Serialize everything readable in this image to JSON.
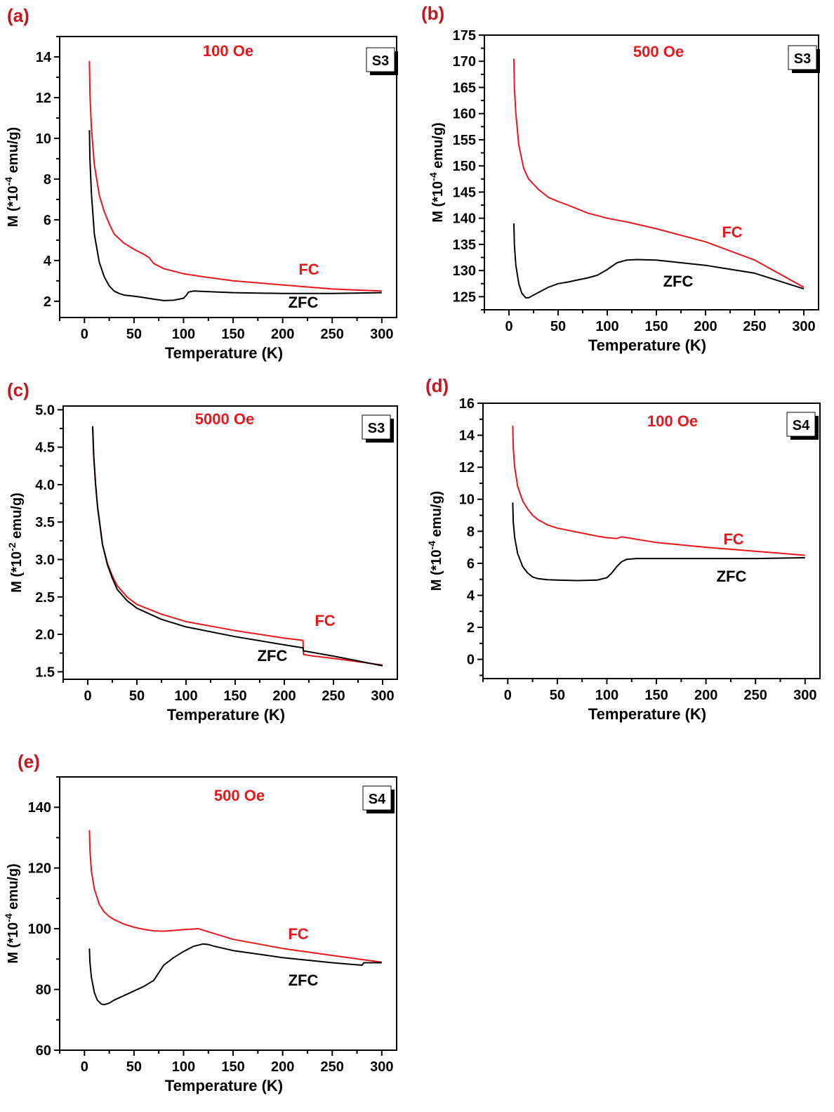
{
  "figure": {
    "colors": {
      "fc": "#e8171c",
      "zfc": "#000000",
      "letters": "#c4161c",
      "field": "#e8171c"
    }
  },
  "chart_data": [
    {
      "type": "line",
      "panel": "(a)",
      "field": "100 Oe",
      "sample": "S3",
      "xlabel": "Temperature (K)",
      "ylabel": {
        "base": "M (*10",
        "exp": "-4",
        "unit": " emu/g)"
      },
      "xlim": [
        -25,
        315
      ],
      "ylim": [
        1.2,
        15
      ],
      "xticks": [
        0,
        50,
        100,
        150,
        200,
        250,
        300
      ],
      "yticks": [
        2,
        4,
        6,
        8,
        10,
        12,
        14
      ],
      "grid": false,
      "series": [
        {
          "name": "FC",
          "color": "#e8171c",
          "x": [
            5,
            5.5,
            7,
            10,
            15,
            20,
            25,
            30,
            40,
            50,
            60,
            65,
            70,
            80,
            100,
            120,
            150,
            200,
            250,
            300
          ],
          "y": [
            13.8,
            12.2,
            10.5,
            8.7,
            7.2,
            6.4,
            5.8,
            5.3,
            4.85,
            4.55,
            4.3,
            4.15,
            3.85,
            3.6,
            3.35,
            3.2,
            3.0,
            2.8,
            2.6,
            2.5
          ]
        },
        {
          "name": "ZFC",
          "color": "#000000",
          "x": [
            5,
            5.5,
            7,
            10,
            15,
            20,
            25,
            30,
            35,
            40,
            50,
            60,
            70,
            80,
            90,
            100,
            103,
            105,
            110,
            120,
            150,
            200,
            250,
            300
          ],
          "y": [
            10.4,
            9.0,
            7.3,
            5.3,
            3.9,
            3.2,
            2.75,
            2.5,
            2.38,
            2.3,
            2.25,
            2.18,
            2.1,
            2.03,
            2.05,
            2.15,
            2.3,
            2.45,
            2.5,
            2.48,
            2.42,
            2.38,
            2.38,
            2.42
          ]
        }
      ]
    },
    {
      "type": "line",
      "panel": "(b)",
      "field": "500 Oe",
      "sample": "S3",
      "xlabel": "Temperature (K)",
      "ylabel": {
        "base": "M (*10",
        "exp": "-4",
        "unit": " emu/g)"
      },
      "xlim": [
        -25,
        315
      ],
      "ylim": [
        122.5,
        175
      ],
      "xticks": [
        0,
        50,
        100,
        150,
        200,
        250,
        300
      ],
      "yticks": [
        125,
        130,
        135,
        140,
        145,
        150,
        155,
        160,
        165,
        170,
        175
      ],
      "grid": false,
      "series": [
        {
          "name": "FC",
          "color": "#e8171c",
          "x": [
            5,
            5.5,
            7,
            10,
            15,
            20,
            25,
            30,
            40,
            50,
            60,
            80,
            100,
            120,
            150,
            200,
            250,
            300
          ],
          "y": [
            170.5,
            165,
            160,
            154,
            149.5,
            147.5,
            146.5,
            145.5,
            144,
            143.2,
            142.5,
            141,
            140,
            139.3,
            138,
            135.5,
            132,
            126.8
          ]
        },
        {
          "name": "ZFC",
          "color": "#000000",
          "x": [
            5,
            5.5,
            7,
            10,
            13,
            17,
            20,
            25,
            30,
            40,
            50,
            60,
            70,
            80,
            90,
            100,
            110,
            120,
            130,
            150,
            200,
            250,
            300
          ],
          "y": [
            139,
            135,
            131,
            127.5,
            125.7,
            124.8,
            124.8,
            125.3,
            125.8,
            126.8,
            127.5,
            127.8,
            128.2,
            128.6,
            129.1,
            130.2,
            131.5,
            132.0,
            132.1,
            132.0,
            131.0,
            129.5,
            126.5
          ]
        }
      ]
    },
    {
      "type": "line",
      "panel": "(c)",
      "field": "5000 Oe",
      "sample": "S3",
      "xlabel": "Temperature (K)",
      "ylabel": {
        "base": "M (*10",
        "exp": "-2",
        "unit": " emu/g)"
      },
      "xlim": [
        -25,
        315
      ],
      "ylim": [
        1.4,
        5.05
      ],
      "xticks": [
        0,
        50,
        100,
        150,
        200,
        250,
        300
      ],
      "yticks": [
        1.5,
        2.0,
        2.5,
        3.0,
        3.5,
        4.0,
        4.5,
        5.0
      ],
      "grid": false,
      "series": [
        {
          "name": "FC",
          "color": "#e8171c",
          "x": [
            5,
            6,
            8,
            10,
            15,
            20,
            25,
            30,
            40,
            50,
            75,
            100,
            150,
            200,
            219,
            219.5,
            230,
            250,
            300
          ],
          "y": [
            4.77,
            4.4,
            4.0,
            3.7,
            3.2,
            2.95,
            2.78,
            2.65,
            2.5,
            2.4,
            2.27,
            2.17,
            2.05,
            1.95,
            1.92,
            1.73,
            1.71,
            1.68,
            1.59
          ]
        },
        {
          "name": "ZFC",
          "color": "#000000",
          "x": [
            5,
            6,
            8,
            10,
            15,
            20,
            25,
            30,
            40,
            50,
            75,
            100,
            150,
            200,
            219,
            219.5,
            250,
            300
          ],
          "y": [
            4.78,
            4.4,
            4.0,
            3.7,
            3.2,
            2.93,
            2.75,
            2.6,
            2.45,
            2.35,
            2.2,
            2.1,
            1.97,
            1.86,
            1.82,
            1.78,
            1.71,
            1.58
          ]
        }
      ]
    },
    {
      "type": "line",
      "panel": "(d)",
      "field": "100 Oe",
      "sample": "S4",
      "xlabel": "Temperature (K)",
      "ylabel": {
        "base": "M (*10",
        "exp": "-4",
        "unit": " emu/g)"
      },
      "xlim": [
        -25,
        315
      ],
      "ylim": [
        -1.2,
        16
      ],
      "xticks": [
        0,
        50,
        100,
        150,
        200,
        250,
        300
      ],
      "yticks": [
        0,
        2,
        4,
        6,
        8,
        10,
        12,
        14,
        16
      ],
      "grid": false,
      "series": [
        {
          "name": "FC",
          "color": "#e8171c",
          "x": [
            5,
            5.5,
            7,
            10,
            15,
            20,
            25,
            30,
            40,
            50,
            70,
            90,
            100,
            110,
            115,
            120,
            150,
            200,
            250,
            300
          ],
          "y": [
            14.6,
            13.2,
            12,
            10.8,
            9.9,
            9.4,
            9.0,
            8.75,
            8.4,
            8.2,
            7.95,
            7.7,
            7.6,
            7.55,
            7.65,
            7.6,
            7.3,
            7.0,
            6.75,
            6.5
          ]
        },
        {
          "name": "ZFC",
          "color": "#000000",
          "x": [
            5,
            5.5,
            7,
            10,
            15,
            20,
            25,
            30,
            40,
            50,
            70,
            90,
            100,
            105,
            110,
            115,
            120,
            130,
            150,
            200,
            250,
            300
          ],
          "y": [
            9.8,
            8.6,
            7.6,
            6.6,
            5.8,
            5.4,
            5.15,
            5.05,
            4.98,
            4.95,
            4.92,
            4.95,
            5.1,
            5.4,
            5.8,
            6.1,
            6.25,
            6.3,
            6.3,
            6.3,
            6.3,
            6.35
          ]
        }
      ]
    },
    {
      "type": "line",
      "panel": "(e)",
      "field": "500 Oe",
      "sample": "S4",
      "xlabel": "Temperature (K)",
      "ylabel": {
        "base": "M (*10",
        "exp": "-4",
        "unit": " emu/g)"
      },
      "xlim": [
        -25,
        315
      ],
      "ylim": [
        60,
        150
      ],
      "xticks": [
        0,
        50,
        100,
        150,
        200,
        250,
        300
      ],
      "yticks": [
        60,
        80,
        100,
        120,
        140
      ],
      "grid": false,
      "series": [
        {
          "name": "FC",
          "color": "#e8171c",
          "x": [
            5,
            5.5,
            7,
            10,
            15,
            20,
            25,
            30,
            40,
            50,
            60,
            70,
            80,
            100,
            115,
            125,
            150,
            200,
            250,
            300
          ],
          "y": [
            132.5,
            126,
            119,
            113,
            108,
            105.5,
            104,
            103,
            101.5,
            100.5,
            99.8,
            99.3,
            99.2,
            99.7,
            100.0,
            99.0,
            96.5,
            93.5,
            91.2,
            89.0
          ]
        },
        {
          "name": "ZFC",
          "color": "#000000",
          "x": [
            5,
            5.5,
            7,
            10,
            13,
            17,
            20,
            25,
            30,
            40,
            50,
            60,
            70,
            80,
            90,
            100,
            110,
            120,
            125,
            130,
            150,
            200,
            250,
            280,
            282,
            300
          ],
          "y": [
            93.5,
            89,
            84,
            79,
            76.5,
            75.2,
            75,
            75.5,
            76.5,
            78,
            79.5,
            81,
            83,
            88,
            90.5,
            92.5,
            94.2,
            95,
            94.8,
            94.3,
            92.8,
            90.5,
            88.8,
            88.0,
            88.8,
            88.8
          ]
        }
      ]
    }
  ]
}
